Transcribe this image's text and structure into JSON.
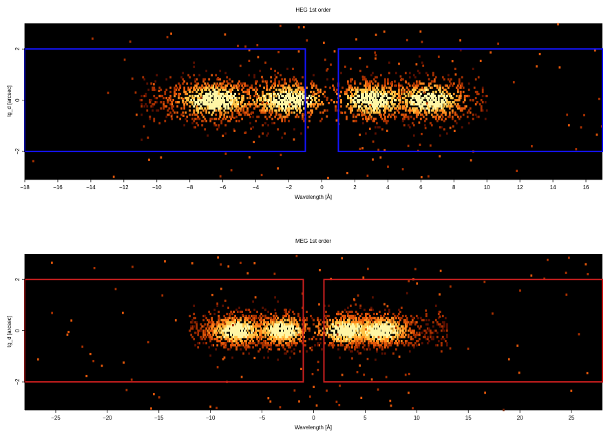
{
  "chart_data": [
    {
      "type": "heatmap",
      "title": "HEG 1st order",
      "xlabel": "Wavelength [Å]",
      "ylabel": "tg_d [arcsec]",
      "xlim": [
        -18,
        17
      ],
      "ylim": [
        -3.1,
        3.0
      ],
      "xticks": [
        -18,
        -16,
        -14,
        -12,
        -10,
        -8,
        -6,
        -4,
        -2,
        0,
        2,
        4,
        6,
        8,
        10,
        12,
        14,
        16
      ],
      "xtick_labels": [
        "−18",
        "−16",
        "−14",
        "−12",
        "−10",
        "−8",
        "−6",
        "−4",
        "−2",
        "0",
        "2",
        "4",
        "6",
        "8",
        "10",
        "12",
        "14",
        "16"
      ],
      "yticks": [
        -2,
        0,
        2
      ],
      "ytick_labels": [
        "−2",
        "0",
        "2"
      ],
      "background": "#000000",
      "colormap": [
        "#5a0f00",
        "#a83000",
        "#e0560a",
        "#ff8a1e",
        "#ffc447",
        "#fff6a6"
      ],
      "regions": [
        {
          "x": [
            -18,
            -1.0
          ],
          "y": [
            -2,
            2
          ],
          "color": "#1414ff"
        },
        {
          "x": [
            1.0,
            17
          ],
          "y": [
            -2,
            2
          ],
          "color": "#1414ff"
        }
      ],
      "clusters": [
        {
          "x_range": [
            -11,
            -1.5
          ],
          "center": -2.5,
          "peaks": [
            -6.5,
            -2.0
          ],
          "sigma_y": 0.45,
          "density": 1.0
        },
        {
          "x_range": [
            1.5,
            10
          ],
          "center": 3.0,
          "peaks": [
            3.0,
            6.5
          ],
          "sigma_y": 0.45,
          "density": 0.85
        }
      ]
    },
    {
      "type": "heatmap",
      "title": "MEG 1st order",
      "xlabel": "Wavelength [Å]",
      "ylabel": "tg_d [arcsec]",
      "xlim": [
        -28,
        28
      ],
      "ylim": [
        -3.1,
        3.0
      ],
      "xticks": [
        -25,
        -20,
        -15,
        -10,
        -5,
        0,
        5,
        10,
        15,
        20,
        25
      ],
      "xtick_labels": [
        "−25",
        "−20",
        "−15",
        "−10",
        "−5",
        "0",
        "5",
        "10",
        "15",
        "20",
        "25"
      ],
      "yticks": [
        -2,
        0,
        2
      ],
      "ytick_labels": [
        "−2",
        "0",
        "2"
      ],
      "background": "#000000",
      "colormap": [
        "#5a0f00",
        "#a83000",
        "#e0560a",
        "#ff8a1e",
        "#ffc447",
        "#fff6a6"
      ],
      "regions": [
        {
          "x": [
            -28,
            -1.0
          ],
          "y": [
            -2,
            2
          ],
          "color": "#cc1f1f"
        },
        {
          "x": [
            1.0,
            28
          ],
          "y": [
            -2,
            2
          ],
          "color": "#cc1f1f"
        }
      ],
      "clusters": [
        {
          "x_range": [
            -12,
            -2
          ],
          "center": -7.5,
          "peaks": [
            -7.5,
            -3.0
          ],
          "sigma_y": 0.35,
          "density": 1.0
        },
        {
          "x_range": [
            2,
            13
          ],
          "center": 6.5,
          "peaks": [
            3.0,
            6.5
          ],
          "sigma_y": 0.35,
          "density": 1.0
        }
      ]
    }
  ]
}
